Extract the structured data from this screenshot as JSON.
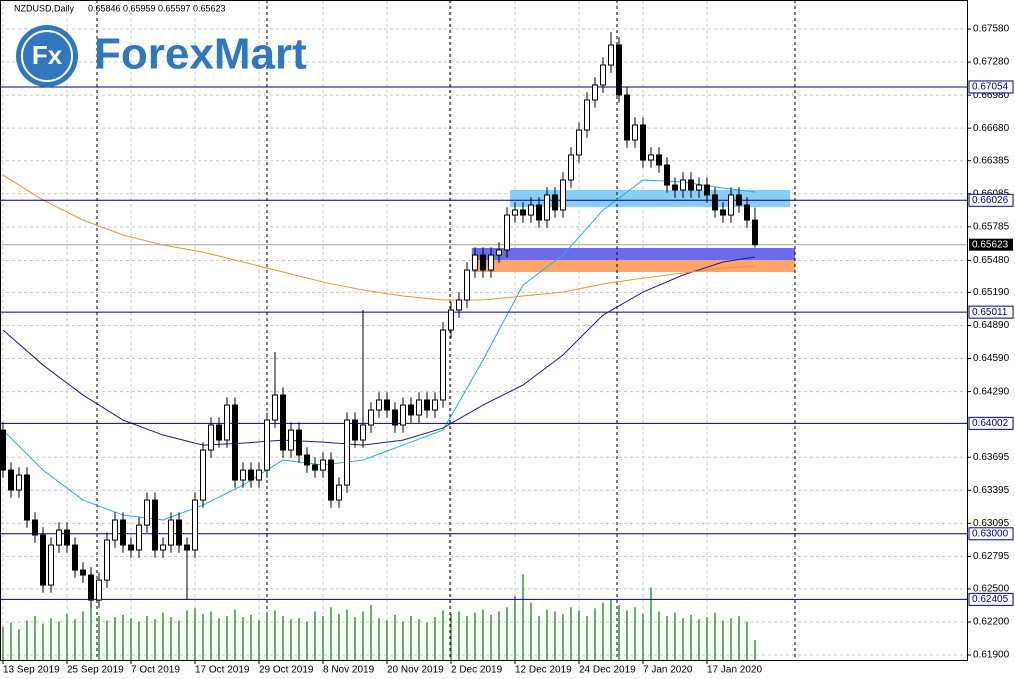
{
  "logo": {
    "badge": "Fx",
    "name": "ForexMart"
  },
  "chart_data": {
    "type": "candlestick",
    "symbol": "NZDUSD,Daily",
    "header_values": [
      0.65846,
      0.65959,
      0.65597,
      0.65623
    ],
    "categories": [
      "13 Sep 2019",
      null,
      null,
      null,
      null,
      null,
      null,
      null,
      "25 Sep 2019",
      null,
      null,
      null,
      null,
      null,
      null,
      null,
      "7 Oct 2019",
      null,
      null,
      null,
      null,
      null,
      null,
      null,
      "17 Oct 2019",
      null,
      null,
      null,
      null,
      null,
      null,
      null,
      "29 Oct 2019",
      null,
      null,
      null,
      null,
      null,
      null,
      null,
      "8 Nov 2019",
      null,
      null,
      null,
      null,
      null,
      null,
      null,
      "20 Nov 2019",
      null,
      null,
      null,
      null,
      null,
      null,
      null,
      "2 Dec 2019",
      null,
      null,
      null,
      null,
      null,
      null,
      null,
      "12 Dec 2019",
      null,
      null,
      null,
      null,
      null,
      null,
      null,
      "24 Dec 2019",
      null,
      null,
      null,
      null,
      null,
      null,
      null,
      "7 Jan 2020",
      null,
      null,
      null,
      null,
      null,
      null,
      null,
      "17 Jan 2020",
      null,
      null,
      null,
      null,
      null,
      null
    ],
    "open": [
      0.63941,
      0.63578,
      0.63397,
      0.63533,
      0.63125,
      0.62989,
      0.62535,
      0.62898,
      0.63034,
      0.62898,
      0.62671,
      0.62626,
      0.62399,
      0.6258,
      0.62943,
      0.63125,
      0.62898,
      0.62853,
      0.63079,
      0.63306,
      0.62853,
      0.62898,
      0.63125,
      0.62898,
      0.62853,
      0.63306,
      0.6376,
      0.63987,
      0.63851,
      0.64168,
      0.63488,
      0.63578,
      0.63488,
      0.63578,
      0.64032,
      0.64259,
      0.6376,
      0.63941,
      0.63715,
      0.63624,
      0.63578,
      0.63669,
      0.63306,
      0.63442,
      0.64032,
      0.63851,
      0.63987,
      0.64123,
      0.64214,
      0.64123,
      0.63987,
      0.64168,
      0.64078,
      0.64214,
      0.64123,
      0.64214,
      0.64849,
      0.6503,
      0.65121,
      0.65393,
      0.65529,
      0.65393,
      0.65529,
      0.65575,
      0.65892,
      0.65938,
      0.65892,
      0.65983,
      0.65847,
      0.66074,
      0.65938,
      0.6621,
      0.66437,
      0.66663,
      0.66936,
      0.67072,
      0.67253,
      0.67435,
      0.66981,
      0.66573,
      0.66709,
      0.66391,
      0.66437,
      0.66346,
      0.66164,
      0.66119,
      0.6621,
      0.66119,
      0.66164,
      0.66074,
      0.65938,
      0.65892,
      0.66074,
      0.65983,
      0.65846
    ],
    "high": [
      0.64011,
      0.63648,
      0.63603,
      0.63603,
      0.63195,
      0.63059,
      0.62968,
      0.63104,
      0.63104,
      0.62968,
      0.62741,
      0.62696,
      0.6265,
      0.63013,
      0.63195,
      0.63195,
      0.62968,
      0.63149,
      0.63376,
      0.63376,
      0.62968,
      0.63195,
      0.63195,
      0.62968,
      0.63376,
      0.6383,
      0.64057,
      0.64057,
      0.64238,
      0.64238,
      0.63648,
      0.63648,
      0.63648,
      0.64102,
      0.64649,
      0.64329,
      0.64011,
      0.64011,
      0.63785,
      0.63694,
      0.63739,
      0.63739,
      0.63512,
      0.64102,
      0.64102,
      0.6503,
      0.64193,
      0.64284,
      0.64284,
      0.64193,
      0.64238,
      0.64238,
      0.64284,
      0.64284,
      0.64284,
      0.64919,
      0.651,
      0.65191,
      0.65463,
      0.65599,
      0.65599,
      0.65599,
      0.65645,
      0.65962,
      0.66008,
      0.66008,
      0.66053,
      0.66053,
      0.66144,
      0.66144,
      0.6628,
      0.66507,
      0.66733,
      0.67006,
      0.67142,
      0.67323,
      0.67553,
      0.67505,
      0.67051,
      0.66779,
      0.66779,
      0.66507,
      0.66507,
      0.66416,
      0.66234,
      0.6628,
      0.6628,
      0.66234,
      0.66234,
      0.66144,
      0.66008,
      0.66144,
      0.66144,
      0.66053,
      0.65959
    ],
    "low": [
      0.63508,
      0.63327,
      0.63327,
      0.63055,
      0.62919,
      0.62465,
      0.62465,
      0.62828,
      0.62828,
      0.62601,
      0.62556,
      0.62329,
      0.62329,
      0.6251,
      0.62873,
      0.62828,
      0.62783,
      0.62783,
      0.63009,
      0.62783,
      0.62783,
      0.62828,
      0.62828,
      0.62399,
      0.62783,
      0.63236,
      0.6369,
      0.63781,
      0.63781,
      0.63418,
      0.63418,
      0.63418,
      0.63418,
      0.63508,
      0.63962,
      0.6369,
      0.6369,
      0.63645,
      0.63554,
      0.63508,
      0.63508,
      0.63236,
      0.63236,
      0.63372,
      0.63781,
      0.63781,
      0.63917,
      0.64053,
      0.64053,
      0.63917,
      0.63917,
      0.64008,
      0.64008,
      0.64053,
      0.64053,
      0.64144,
      0.64779,
      0.6496,
      0.65051,
      0.65323,
      0.65323,
      0.65323,
      0.65459,
      0.65505,
      0.65822,
      0.65822,
      0.65822,
      0.65777,
      0.65777,
      0.65868,
      0.65868,
      0.6614,
      0.66367,
      0.66593,
      0.66866,
      0.67002,
      0.67183,
      0.66911,
      0.66503,
      0.66503,
      0.66321,
      0.66321,
      0.66276,
      0.66094,
      0.66049,
      0.66049,
      0.66049,
      0.66049,
      0.66004,
      0.65868,
      0.65822,
      0.65822,
      0.65913,
      0.65776,
      0.65597
    ],
    "close": [
      0.63578,
      0.63397,
      0.63533,
      0.63125,
      0.62989,
      0.62535,
      0.62898,
      0.63034,
      0.62898,
      0.62671,
      0.62626,
      0.62399,
      0.6258,
      0.62943,
      0.63125,
      0.62898,
      0.62853,
      0.63079,
      0.63306,
      0.62853,
      0.62898,
      0.63125,
      0.62898,
      0.62853,
      0.63306,
      0.6376,
      0.63987,
      0.63851,
      0.64168,
      0.63488,
      0.63578,
      0.63488,
      0.63578,
      0.64032,
      0.64259,
      0.6376,
      0.63941,
      0.63715,
      0.63624,
      0.63578,
      0.63669,
      0.63306,
      0.63442,
      0.64032,
      0.63851,
      0.63987,
      0.64123,
      0.64214,
      0.64123,
      0.63987,
      0.64168,
      0.64078,
      0.64214,
      0.64123,
      0.64214,
      0.64849,
      0.6503,
      0.65121,
      0.65393,
      0.65529,
      0.65393,
      0.65529,
      0.65575,
      0.65892,
      0.65938,
      0.65892,
      0.65983,
      0.65847,
      0.66074,
      0.65938,
      0.6621,
      0.66437,
      0.66663,
      0.66936,
      0.67072,
      0.67253,
      0.67435,
      0.66981,
      0.66573,
      0.66709,
      0.66391,
      0.66437,
      0.66346,
      0.66164,
      0.66119,
      0.6621,
      0.66119,
      0.66164,
      0.66074,
      0.65938,
      0.65892,
      0.66074,
      0.65983,
      0.65846,
      0.65623
    ],
    "volumes": [
      30,
      34,
      28,
      36,
      40,
      33,
      38,
      35,
      42,
      37,
      44,
      48,
      40,
      36,
      39,
      41,
      38,
      35,
      40,
      37,
      43,
      39,
      36,
      45,
      47,
      42,
      44,
      38,
      40,
      46,
      39,
      41,
      36,
      43,
      45,
      40,
      37,
      38,
      35,
      44,
      40,
      48,
      42,
      46,
      39,
      44,
      50,
      38,
      36,
      41,
      35,
      40,
      37,
      34,
      39,
      45,
      42,
      44,
      40,
      43,
      46,
      41,
      44,
      48,
      58,
      78,
      52,
      40,
      46,
      44,
      42,
      48,
      45,
      40,
      47,
      52,
      55,
      50,
      45,
      48,
      42,
      66,
      44,
      40,
      43,
      38,
      41,
      37,
      39,
      43,
      36,
      38,
      40,
      35,
      18
    ],
    "volume_color": "#008000",
    "ylim": [
      0.61855,
      0.67843
    ],
    "yticks": [
      {
        "value": 0.6758,
        "label": "0.67580"
      },
      {
        "value": 0.6728,
        "label": "0.67280"
      },
      {
        "value": 0.6698,
        "label": "0.66980"
      },
      {
        "value": 0.6668,
        "label": "0.66680"
      },
      0.66385,
      0.66085,
      0.65785,
      {
        "value": 0.6548,
        "label": "0.65480"
      },
      {
        "value": 0.6519,
        "label": "0.65190"
      },
      {
        "value": 0.6489,
        "label": "0.64890"
      },
      {
        "value": 0.6459,
        "label": "0.64590"
      },
      {
        "value": 0.6429,
        "label": "0.64290"
      },
      0.63695,
      0.63395,
      0.63095,
      0.62795,
      {
        "value": 0.625,
        "label": "0.62500"
      },
      {
        "value": 0.622,
        "label": "0.62200"
      },
      {
        "value": 0.619,
        "label": "0.61900"
      }
    ],
    "grid": true,
    "lines": [
      {
        "color": "#1ab2e6",
        "x": [
          0,
          5,
          10,
          15,
          20,
          25,
          30,
          35,
          40,
          45,
          50,
          55,
          60,
          65,
          70,
          75,
          80,
          85,
          90,
          94
        ],
        "values": [
          0.63941,
          0.63578,
          0.63306,
          0.6317,
          0.63125,
          0.63261,
          0.63442,
          0.63669,
          0.63624,
          0.63669,
          0.63805,
          0.63941,
          0.64576,
          0.65257,
          0.65529,
          0.65937,
          0.6621,
          0.66192,
          0.66137,
          0.66101
        ]
      },
      {
        "color": "#1c1c8c",
        "x": [
          0,
          5,
          10,
          15,
          20,
          25,
          30,
          35,
          40,
          45,
          50,
          55,
          60,
          65,
          70,
          75,
          80,
          85,
          90,
          94
        ],
        "values": [
          0.64849,
          0.64531,
          0.64259,
          0.64032,
          0.63896,
          0.63805,
          0.63823,
          0.6385,
          0.63832,
          0.63805,
          0.6385,
          0.63959,
          0.64168,
          0.6435,
          0.64622,
          0.64985,
          0.65193,
          0.65348,
          0.65466,
          0.65511
        ]
      },
      {
        "color": "#f0962a",
        "x": [
          0,
          5,
          10,
          15,
          20,
          25,
          30,
          35,
          40,
          45,
          50,
          55,
          60,
          65,
          70,
          75,
          80,
          85,
          90,
          94
        ],
        "values": [
          0.66255,
          0.66028,
          0.65847,
          0.65711,
          0.6562,
          0.65556,
          0.65466,
          0.65375,
          0.65284,
          0.65212,
          0.65157,
          0.65121,
          0.65121,
          0.65157,
          0.65193,
          0.65266,
          0.6532,
          0.65366,
          0.65411,
          0.65429
        ]
      }
    ],
    "levels": [
      0.67054,
      0.66026,
      0.65011,
      0.64002,
      {
        "value": 0.63,
        "label": "0.63000"
      },
      0.62405
    ],
    "level_color": "#00008b",
    "current_price": 0.65623,
    "zones": [
      {
        "x": [
          63.4,
          98.4
        ],
        "y": [
          0.65965,
          0.66119
        ],
        "color": "#87cefa"
      },
      {
        "x": [
          58.6,
          99
        ],
        "y": [
          0.65484,
          0.65593
        ],
        "color": "#6b6bef"
      },
      {
        "x": [
          58.6,
          99
        ],
        "y": [
          0.65375,
          0.65484
        ],
        "color": "#ffa46c"
      }
    ]
  }
}
